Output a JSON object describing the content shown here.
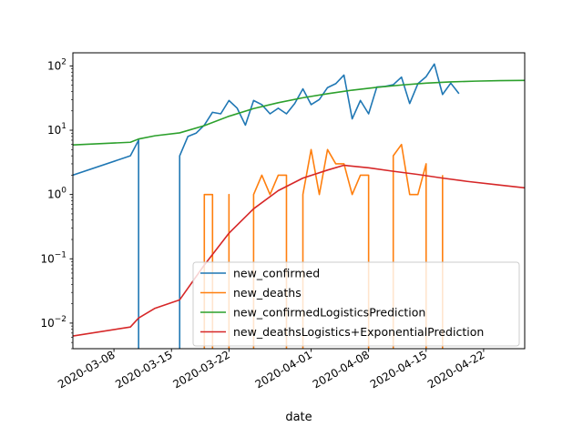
{
  "chart_data": {
    "type": "line",
    "title": "",
    "xlabel": "date",
    "ylabel": "",
    "yscale": "log",
    "xlim": [
      "2020-03-03",
      "2020-04-27"
    ],
    "ylim": [
      0.004,
      160
    ],
    "grid": false,
    "legend_position": "lower-right",
    "x_ticks": [
      "2020-03-08",
      "2020-03-15",
      "2020-03-22",
      "2020-04-01",
      "2020-04-08",
      "2020-04-15",
      "2020-04-22"
    ],
    "y_ticks": [
      {
        "value": 0.01,
        "base": "10",
        "exp": "−2"
      },
      {
        "value": 0.1,
        "base": "10",
        "exp": "−1"
      },
      {
        "value": 1,
        "base": "10",
        "exp": "0"
      },
      {
        "value": 10,
        "base": "10",
        "exp": "1"
      },
      {
        "value": 100,
        "base": "10",
        "exp": "2"
      }
    ],
    "series": [
      {
        "name": "new_confirmed",
        "color": "#1f77b4",
        "points": [
          [
            "2020-03-03",
            2
          ],
          [
            "2020-03-10",
            4
          ],
          [
            "2020-03-11",
            7
          ],
          [
            "2020-03-11",
            0.0001
          ],
          [
            "2020-03-16",
            0.0001
          ],
          [
            "2020-03-16",
            4
          ],
          [
            "2020-03-17",
            8
          ],
          [
            "2020-03-18",
            9
          ],
          [
            "2020-03-19",
            12
          ],
          [
            "2020-03-20",
            19
          ],
          [
            "2020-03-21",
            18
          ],
          [
            "2020-03-22",
            29
          ],
          [
            "2020-03-23",
            22
          ],
          [
            "2020-03-24",
            12
          ],
          [
            "2020-03-25",
            29
          ],
          [
            "2020-03-26",
            25
          ],
          [
            "2020-03-27",
            18
          ],
          [
            "2020-03-28",
            22
          ],
          [
            "2020-03-29",
            18
          ],
          [
            "2020-03-30",
            26
          ],
          [
            "2020-03-31",
            44
          ],
          [
            "2020-04-01",
            25
          ],
          [
            "2020-04-02",
            30
          ],
          [
            "2020-04-03",
            46
          ],
          [
            "2020-04-04",
            53
          ],
          [
            "2020-04-05",
            72
          ],
          [
            "2020-04-06",
            15
          ],
          [
            "2020-04-07",
            29
          ],
          [
            "2020-04-08",
            18
          ],
          [
            "2020-04-09",
            47
          ],
          [
            "2020-04-10",
            48
          ],
          [
            "2020-04-11",
            51
          ],
          [
            "2020-04-12",
            67
          ],
          [
            "2020-04-13",
            26
          ],
          [
            "2020-04-14",
            53
          ],
          [
            "2020-04-15",
            68
          ],
          [
            "2020-04-16",
            107
          ],
          [
            "2020-04-17",
            36
          ],
          [
            "2020-04-18",
            54
          ],
          [
            "2020-04-19",
            37
          ]
        ]
      },
      {
        "name": "new_deaths",
        "color": "#ff7f0e",
        "points": [
          [
            "2020-03-19",
            0.0001
          ],
          [
            "2020-03-19",
            1
          ],
          [
            "2020-03-20",
            1
          ],
          [
            "2020-03-20",
            0.0001
          ],
          [
            "2020-03-22",
            0.0001
          ],
          [
            "2020-03-22",
            1
          ],
          [
            "2020-03-22",
            0.0001
          ],
          [
            "2020-03-25",
            0.0001
          ],
          [
            "2020-03-25",
            1
          ],
          [
            "2020-03-26",
            2
          ],
          [
            "2020-03-27",
            1
          ],
          [
            "2020-03-28",
            2
          ],
          [
            "2020-03-29",
            2
          ],
          [
            "2020-03-29",
            0.0001
          ],
          [
            "2020-03-31",
            0.0001
          ],
          [
            "2020-03-31",
            1
          ],
          [
            "2020-04-01",
            5
          ],
          [
            "2020-04-02",
            1
          ],
          [
            "2020-04-03",
            5
          ],
          [
            "2020-04-04",
            3
          ],
          [
            "2020-04-05",
            3
          ],
          [
            "2020-04-06",
            1
          ],
          [
            "2020-04-07",
            2
          ],
          [
            "2020-04-08",
            2
          ],
          [
            "2020-04-08",
            0.0001
          ],
          [
            "2020-04-11",
            0.0001
          ],
          [
            "2020-04-11",
            4
          ],
          [
            "2020-04-12",
            6
          ],
          [
            "2020-04-13",
            1
          ],
          [
            "2020-04-14",
            1
          ],
          [
            "2020-04-15",
            3
          ],
          [
            "2020-04-15",
            0.0001
          ],
          [
            "2020-04-17",
            0.0001
          ],
          [
            "2020-04-17",
            2
          ]
        ]
      },
      {
        "name": "new_confirmedLogisticsPrediction",
        "color": "#2ca02c",
        "points": [
          [
            "2020-03-03",
            5.9
          ],
          [
            "2020-03-10",
            6.5
          ],
          [
            "2020-03-11",
            7.3
          ],
          [
            "2020-03-13",
            8.2
          ],
          [
            "2020-03-16",
            9.1
          ],
          [
            "2020-03-19",
            11.8
          ],
          [
            "2020-03-22",
            16.5
          ],
          [
            "2020-03-25",
            21.7
          ],
          [
            "2020-03-28",
            26.8
          ],
          [
            "2020-03-31",
            32
          ],
          [
            "2020-04-03",
            37
          ],
          [
            "2020-04-06",
            42
          ],
          [
            "2020-04-09",
            46.5
          ],
          [
            "2020-04-12",
            50.5
          ],
          [
            "2020-04-15",
            54
          ],
          [
            "2020-04-18",
            56.5
          ],
          [
            "2020-04-21",
            58
          ],
          [
            "2020-04-24",
            59
          ],
          [
            "2020-04-27",
            59.5
          ]
        ]
      },
      {
        "name": "new_deathsLogistics+ExponentialPrediction",
        "color": "#d62728",
        "points": [
          [
            "2020-03-03",
            0.0063
          ],
          [
            "2020-03-10",
            0.0087
          ],
          [
            "2020-03-11",
            0.012
          ],
          [
            "2020-03-13",
            0.017
          ],
          [
            "2020-03-16",
            0.023
          ],
          [
            "2020-03-19",
            0.08
          ],
          [
            "2020-03-22",
            0.25
          ],
          [
            "2020-03-25",
            0.6
          ],
          [
            "2020-03-28",
            1.15
          ],
          [
            "2020-03-31",
            1.8
          ],
          [
            "2020-04-03",
            2.4
          ],
          [
            "2020-04-05",
            2.85
          ],
          [
            "2020-04-08",
            2.6
          ],
          [
            "2020-04-11",
            2.3
          ],
          [
            "2020-04-14",
            2.05
          ],
          [
            "2020-04-17",
            1.8
          ],
          [
            "2020-04-20",
            1.6
          ],
          [
            "2020-04-24",
            1.4
          ],
          [
            "2020-04-27",
            1.27
          ]
        ]
      }
    ]
  }
}
